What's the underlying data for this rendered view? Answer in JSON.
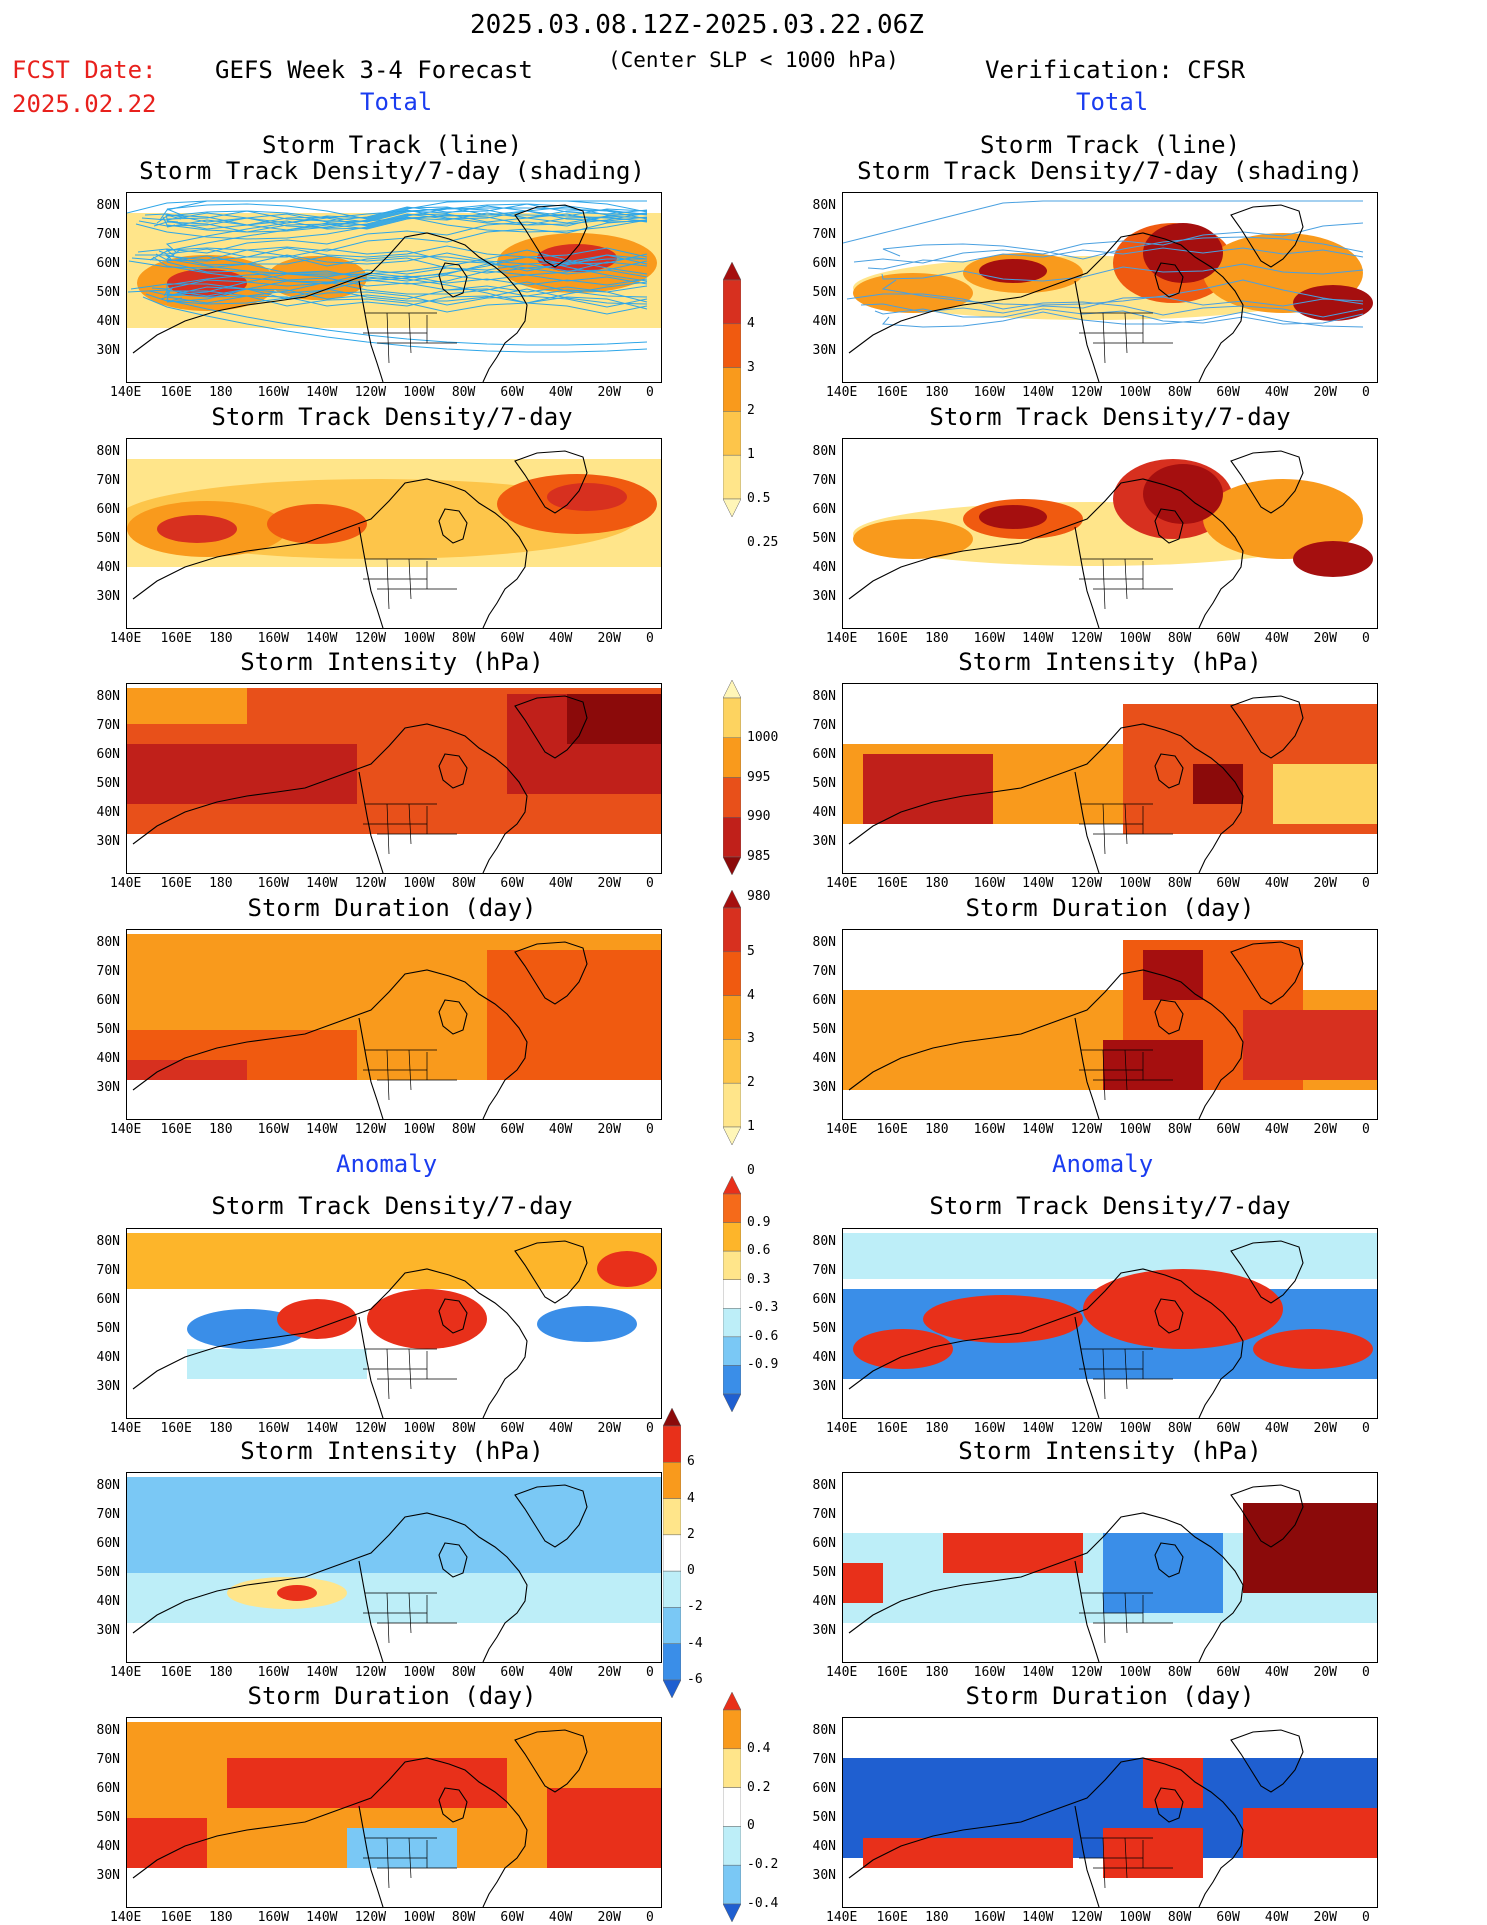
{
  "header": {
    "date_range": "2025.03.08.12Z-2025.03.22.06Z",
    "forecast_title": "GEFS Week 3-4 Forecast",
    "criterion": "(Center SLP < 1000 hPa)",
    "verification": "Verification: CFSR",
    "fcst_date_label": "FCST Date:",
    "fcst_date": "2025.02.22"
  },
  "sections": {
    "total": "Total",
    "anomaly": "Anomaly"
  },
  "panel_titles": {
    "track_line": "Storm Track (line)",
    "track_shading": "Storm Track Density/7-day (shading)",
    "density": "Storm Track Density/7-day",
    "intensity": "Storm Intensity (hPa)",
    "duration": "Storm Duration (day)"
  },
  "axes": {
    "lat_ticks": [
      "80N",
      "70N",
      "60N",
      "50N",
      "40N",
      "30N"
    ],
    "lon_ticks": [
      "140E",
      "160E",
      "180",
      "160W",
      "140W",
      "120W",
      "100W",
      "80W",
      "60W",
      "40W",
      "20W",
      "0"
    ]
  },
  "colorbars": {
    "density": {
      "labels": [
        "4",
        "3",
        "2",
        "1",
        "0.5",
        "0.25"
      ],
      "colors": [
        "#a50f0f",
        "#d7301f",
        "#f05a10",
        "#f99a1c",
        "#fdc54a",
        "#ffe58a",
        "#fff6b8"
      ]
    },
    "intensity": {
      "labels": [
        "1000",
        "995",
        "990",
        "985",
        "980"
      ],
      "colors": [
        "#fff6b8",
        "#fdd360",
        "#f99a1c",
        "#e8501a",
        "#c0201a",
        "#8b0a0a"
      ]
    },
    "duration": {
      "labels": [
        "5",
        "4",
        "3",
        "2",
        "1",
        "0"
      ],
      "colors": [
        "#a50f0f",
        "#d7301f",
        "#f05a10",
        "#f99a1c",
        "#fdc54a",
        "#ffe58a",
        "#fff6b8"
      ]
    },
    "anom_density": {
      "labels": [
        "0.9",
        "0.6",
        "0.3",
        "-0.3",
        "-0.6",
        "-0.9"
      ],
      "colors": [
        "#e8301a",
        "#f56a1a",
        "#fdb52a",
        "#ffe58a",
        "#ffffff",
        "#bdeef8",
        "#7ac8f5",
        "#3a8ee8",
        "#1f5fd0"
      ]
    },
    "anom_intensity": {
      "labels": [
        "6",
        "4",
        "2",
        "0",
        "-2",
        "-4",
        "-6"
      ],
      "colors": [
        "#8b0a0a",
        "#e8301a",
        "#f99a1c",
        "#ffe58a",
        "#ffffff",
        "#bdeef8",
        "#7ac8f5",
        "#3a8ee8",
        "#1f5fd0"
      ]
    },
    "anom_duration": {
      "labels": [
        "0.4",
        "0.2",
        "0",
        "-0.2",
        "-0.4"
      ],
      "colors": [
        "#e8301a",
        "#f99a1c",
        "#ffe58a",
        "#ffffff",
        "#bdeef8",
        "#7ac8f5",
        "#1f5fd0"
      ]
    }
  }
}
